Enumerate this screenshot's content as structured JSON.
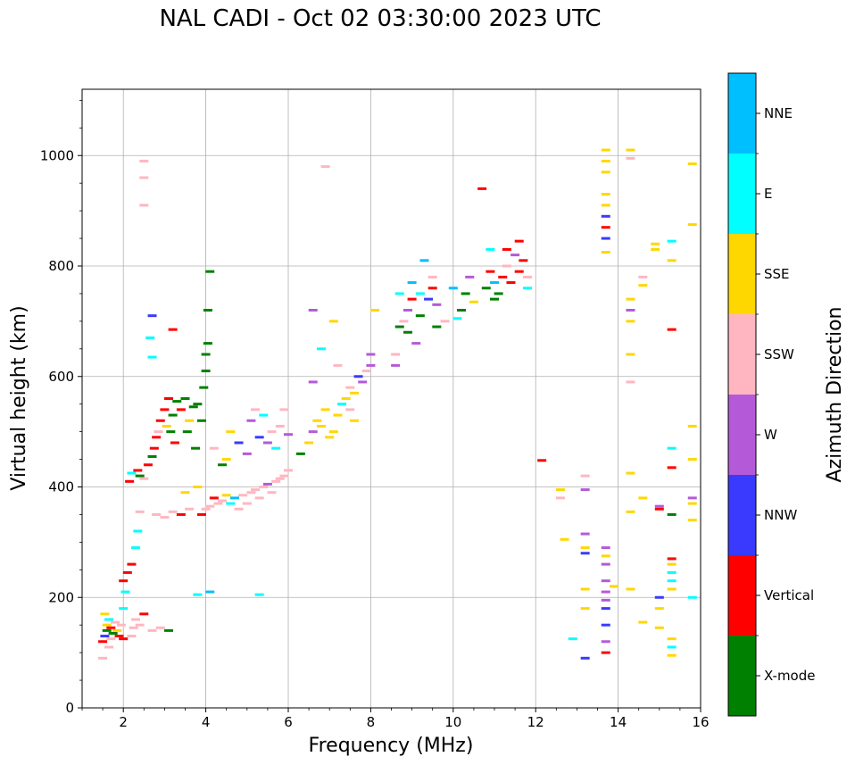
{
  "chart_data": {
    "type": "scatter",
    "title": "NAL CADI - Oct 02 03:30:00 2023 UTC",
    "xlabel": "Frequency (MHz)",
    "ylabel": "Virtual height (km)",
    "xlim": [
      1,
      16
    ],
    "ylim": [
      0,
      1120
    ],
    "xticks": [
      2,
      4,
      6,
      8,
      10,
      12,
      14,
      16
    ],
    "yticks": [
      0,
      200,
      400,
      600,
      800,
      1000
    ],
    "grid": true,
    "colorbar": {
      "label": "Azimuth Direction",
      "categories": [
        {
          "name": "X-mode",
          "color": "#008000"
        },
        {
          "name": "Vertical",
          "color": "#ff0000"
        },
        {
          "name": "NNW",
          "color": "#3a3aff"
        },
        {
          "name": "W",
          "color": "#b45ad8"
        },
        {
          "name": "SSW",
          "color": "#ffb6c1"
        },
        {
          "name": "SSE",
          "color": "#ffd700"
        },
        {
          "name": "E",
          "color": "#00ffff"
        },
        {
          "name": "NNE",
          "color": "#00bfff"
        }
      ]
    },
    "points": [
      [
        1.5,
        90,
        4
      ],
      [
        1.5,
        120,
        1
      ],
      [
        1.55,
        130,
        2
      ],
      [
        1.6,
        140,
        0
      ],
      [
        1.6,
        150,
        5
      ],
      [
        1.65,
        160,
        6
      ],
      [
        1.7,
        125,
        4
      ],
      [
        1.7,
        145,
        1
      ],
      [
        1.75,
        135,
        0
      ],
      [
        1.8,
        155,
        4
      ],
      [
        1.85,
        140,
        5
      ],
      [
        1.9,
        130,
        1
      ],
      [
        1.95,
        150,
        4
      ],
      [
        2.0,
        180,
        6
      ],
      [
        2.0,
        125,
        1
      ],
      [
        1.55,
        170,
        5
      ],
      [
        1.65,
        110,
        4
      ],
      [
        2.0,
        230,
        1
      ],
      [
        2.05,
        210,
        6
      ],
      [
        2.1,
        245,
        1
      ],
      [
        2.2,
        260,
        1
      ],
      [
        2.3,
        290,
        6
      ],
      [
        2.35,
        320,
        6
      ],
      [
        2.4,
        355,
        4
      ],
      [
        2.2,
        130,
        4
      ],
      [
        2.25,
        145,
        4
      ],
      [
        2.3,
        160,
        4
      ],
      [
        2.4,
        150,
        4
      ],
      [
        2.5,
        170,
        1
      ],
      [
        2.7,
        140,
        4
      ],
      [
        2.9,
        145,
        4
      ],
      [
        3.1,
        140,
        0
      ],
      [
        2.15,
        410,
        1
      ],
      [
        2.2,
        425,
        6
      ],
      [
        2.35,
        430,
        1
      ],
      [
        2.4,
        420,
        0
      ],
      [
        2.5,
        415,
        4
      ],
      [
        2.6,
        440,
        1
      ],
      [
        2.7,
        455,
        0
      ],
      [
        2.75,
        470,
        1
      ],
      [
        2.8,
        490,
        1
      ],
      [
        2.85,
        500,
        4
      ],
      [
        2.9,
        520,
        1
      ],
      [
        3.0,
        540,
        1
      ],
      [
        3.05,
        510,
        5
      ],
      [
        3.1,
        560,
        1
      ],
      [
        3.15,
        500,
        0
      ],
      [
        3.2,
        530,
        0
      ],
      [
        3.25,
        480,
        1
      ],
      [
        3.3,
        555,
        0
      ],
      [
        3.4,
        540,
        1
      ],
      [
        3.5,
        560,
        0
      ],
      [
        3.55,
        500,
        0
      ],
      [
        3.6,
        520,
        5
      ],
      [
        3.7,
        545,
        0
      ],
      [
        3.75,
        470,
        0
      ],
      [
        3.8,
        550,
        0
      ],
      [
        3.9,
        520,
        0
      ],
      [
        3.95,
        580,
        0
      ],
      [
        4.0,
        610,
        0
      ],
      [
        4.0,
        640,
        0
      ],
      [
        4.05,
        720,
        0
      ],
      [
        4.1,
        790,
        0
      ],
      [
        4.05,
        660,
        0
      ],
      [
        2.5,
        910,
        4
      ],
      [
        2.5,
        960,
        4
      ],
      [
        2.5,
        990,
        4
      ],
      [
        2.7,
        710,
        2
      ],
      [
        2.65,
        670,
        6
      ],
      [
        2.7,
        635,
        6
      ],
      [
        3.2,
        685,
        1
      ],
      [
        2.8,
        350,
        4
      ],
      [
        3.0,
        345,
        4
      ],
      [
        3.2,
        355,
        4
      ],
      [
        3.4,
        350,
        1
      ],
      [
        3.5,
        390,
        5
      ],
      [
        3.6,
        360,
        4
      ],
      [
        3.8,
        400,
        5
      ],
      [
        3.9,
        350,
        1
      ],
      [
        4.0,
        360,
        4
      ],
      [
        4.1,
        365,
        4
      ],
      [
        4.2,
        380,
        1
      ],
      [
        4.3,
        370,
        4
      ],
      [
        4.4,
        375,
        4
      ],
      [
        4.5,
        385,
        5
      ],
      [
        4.6,
        370,
        6
      ],
      [
        4.7,
        380,
        7
      ],
      [
        4.8,
        360,
        4
      ],
      [
        4.9,
        385,
        4
      ],
      [
        5.0,
        370,
        4
      ],
      [
        5.1,
        390,
        4
      ],
      [
        5.2,
        395,
        4
      ],
      [
        5.3,
        380,
        4
      ],
      [
        5.4,
        400,
        4
      ],
      [
        5.5,
        405,
        3
      ],
      [
        5.6,
        390,
        4
      ],
      [
        5.7,
        410,
        4
      ],
      [
        5.8,
        415,
        4
      ],
      [
        5.9,
        420,
        4
      ],
      [
        6.0,
        430,
        4
      ],
      [
        3.8,
        205,
        6
      ],
      [
        4.1,
        210,
        7
      ],
      [
        5.3,
        205,
        6
      ],
      [
        4.2,
        470,
        4
      ],
      [
        4.4,
        440,
        0
      ],
      [
        4.5,
        450,
        5
      ],
      [
        4.6,
        500,
        5
      ],
      [
        4.8,
        480,
        2
      ],
      [
        5.0,
        460,
        3
      ],
      [
        5.1,
        520,
        3
      ],
      [
        5.2,
        540,
        4
      ],
      [
        5.3,
        490,
        2
      ],
      [
        5.4,
        530,
        6
      ],
      [
        5.5,
        480,
        3
      ],
      [
        5.6,
        500,
        4
      ],
      [
        5.7,
        470,
        6
      ],
      [
        5.8,
        510,
        4
      ],
      [
        5.9,
        540,
        4
      ],
      [
        6.0,
        495,
        3
      ],
      [
        6.3,
        460,
        0
      ],
      [
        6.5,
        480,
        5
      ],
      [
        6.6,
        500,
        3
      ],
      [
        6.7,
        520,
        5
      ],
      [
        6.8,
        510,
        5
      ],
      [
        6.9,
        540,
        5
      ],
      [
        7.0,
        490,
        5
      ],
      [
        7.1,
        500,
        5
      ],
      [
        7.2,
        530,
        5
      ],
      [
        7.3,
        550,
        6
      ],
      [
        7.4,
        560,
        5
      ],
      [
        7.5,
        580,
        4
      ],
      [
        7.6,
        570,
        5
      ],
      [
        7.7,
        600,
        2
      ],
      [
        7.8,
        590,
        3
      ],
      [
        7.9,
        610,
        4
      ],
      [
        8.0,
        620,
        3
      ],
      [
        8.0,
        640,
        3
      ],
      [
        7.5,
        540,
        4
      ],
      [
        7.6,
        520,
        5
      ],
      [
        6.6,
        720,
        3
      ],
      [
        6.6,
        590,
        3
      ],
      [
        6.8,
        650,
        6
      ],
      [
        6.9,
        980,
        4
      ],
      [
        8.1,
        720,
        5
      ],
      [
        7.1,
        700,
        5
      ],
      [
        7.2,
        620,
        4
      ],
      [
        8.6,
        620,
        3
      ],
      [
        8.6,
        640,
        4
      ],
      [
        8.7,
        690,
        0
      ],
      [
        8.7,
        750,
        6
      ],
      [
        8.8,
        700,
        4
      ],
      [
        8.9,
        720,
        3
      ],
      [
        8.9,
        680,
        0
      ],
      [
        9.0,
        770,
        7
      ],
      [
        9.0,
        740,
        1
      ],
      [
        9.1,
        660,
        3
      ],
      [
        9.2,
        710,
        0
      ],
      [
        9.2,
        750,
        6
      ],
      [
        9.3,
        810,
        7
      ],
      [
        9.4,
        740,
        2
      ],
      [
        9.5,
        760,
        1
      ],
      [
        9.5,
        780,
        4
      ],
      [
        9.6,
        690,
        0
      ],
      [
        9.6,
        730,
        3
      ],
      [
        9.8,
        700,
        4
      ],
      [
        10.0,
        760,
        7
      ],
      [
        10.1,
        705,
        6
      ],
      [
        10.2,
        720,
        0
      ],
      [
        10.3,
        750,
        0
      ],
      [
        10.4,
        780,
        3
      ],
      [
        10.5,
        735,
        5
      ],
      [
        10.7,
        940,
        1
      ],
      [
        10.8,
        760,
        0
      ],
      [
        10.9,
        790,
        1
      ],
      [
        11.0,
        770,
        7
      ],
      [
        11.1,
        750,
        0
      ],
      [
        11.2,
        780,
        1
      ],
      [
        11.3,
        800,
        4
      ],
      [
        11.4,
        770,
        1
      ],
      [
        11.5,
        820,
        3
      ],
      [
        11.6,
        790,
        1
      ],
      [
        11.7,
        810,
        1
      ],
      [
        11.8,
        780,
        4
      ],
      [
        11.8,
        760,
        6
      ],
      [
        10.9,
        830,
        6
      ],
      [
        11.0,
        740,
        0
      ],
      [
        11.3,
        830,
        1
      ],
      [
        11.6,
        845,
        1
      ],
      [
        12.15,
        448,
        1
      ],
      [
        12.6,
        395,
        5
      ],
      [
        12.6,
        380,
        4
      ],
      [
        12.7,
        305,
        5
      ],
      [
        12.9,
        125,
        6
      ],
      [
        13.2,
        420,
        4
      ],
      [
        13.2,
        395,
        3
      ],
      [
        13.2,
        315,
        3
      ],
      [
        13.2,
        290,
        5
      ],
      [
        13.2,
        280,
        2
      ],
      [
        13.2,
        215,
        5
      ],
      [
        13.2,
        180,
        5
      ],
      [
        13.2,
        90,
        2
      ],
      [
        13.7,
        1010,
        5
      ],
      [
        13.7,
        990,
        5
      ],
      [
        13.7,
        970,
        5
      ],
      [
        13.7,
        930,
        5
      ],
      [
        13.7,
        910,
        5
      ],
      [
        13.7,
        890,
        2
      ],
      [
        13.7,
        870,
        1
      ],
      [
        13.7,
        850,
        2
      ],
      [
        13.7,
        825,
        5
      ],
      [
        13.7,
        290,
        3
      ],
      [
        13.7,
        275,
        5
      ],
      [
        13.7,
        260,
        3
      ],
      [
        13.7,
        230,
        3
      ],
      [
        13.7,
        210,
        3
      ],
      [
        13.7,
        195,
        3
      ],
      [
        13.7,
        180,
        2
      ],
      [
        13.7,
        150,
        2
      ],
      [
        13.7,
        120,
        3
      ],
      [
        13.7,
        100,
        1
      ],
      [
        13.9,
        220,
        5
      ],
      [
        14.3,
        1010,
        5
      ],
      [
        14.3,
        995,
        4
      ],
      [
        14.3,
        740,
        5
      ],
      [
        14.3,
        720,
        3
      ],
      [
        14.3,
        700,
        5
      ],
      [
        14.3,
        640,
        5
      ],
      [
        14.3,
        590,
        4
      ],
      [
        14.3,
        425,
        5
      ],
      [
        14.3,
        355,
        5
      ],
      [
        14.3,
        215,
        5
      ],
      [
        14.6,
        780,
        4
      ],
      [
        14.6,
        765,
        5
      ],
      [
        14.6,
        380,
        5
      ],
      [
        14.6,
        155,
        5
      ],
      [
        14.9,
        840,
        5
      ],
      [
        14.9,
        830,
        5
      ],
      [
        15.0,
        360,
        1
      ],
      [
        15.0,
        365,
        3
      ],
      [
        15.0,
        200,
        2
      ],
      [
        15.0,
        180,
        5
      ],
      [
        15.0,
        145,
        5
      ],
      [
        15.3,
        845,
        6
      ],
      [
        15.3,
        810,
        5
      ],
      [
        15.3,
        685,
        1
      ],
      [
        15.3,
        470,
        6
      ],
      [
        15.3,
        435,
        1
      ],
      [
        15.3,
        350,
        0
      ],
      [
        15.3,
        270,
        1
      ],
      [
        15.3,
        260,
        5
      ],
      [
        15.3,
        245,
        6
      ],
      [
        15.3,
        230,
        6
      ],
      [
        15.3,
        215,
        5
      ],
      [
        15.3,
        125,
        5
      ],
      [
        15.3,
        110,
        6
      ],
      [
        15.3,
        95,
        5
      ],
      [
        15.8,
        985,
        5
      ],
      [
        15.8,
        875,
        5
      ],
      [
        15.8,
        510,
        5
      ],
      [
        15.8,
        450,
        5
      ],
      [
        15.8,
        380,
        3
      ],
      [
        15.8,
        370,
        5
      ],
      [
        15.8,
        340,
        5
      ],
      [
        15.8,
        200,
        6
      ]
    ]
  }
}
